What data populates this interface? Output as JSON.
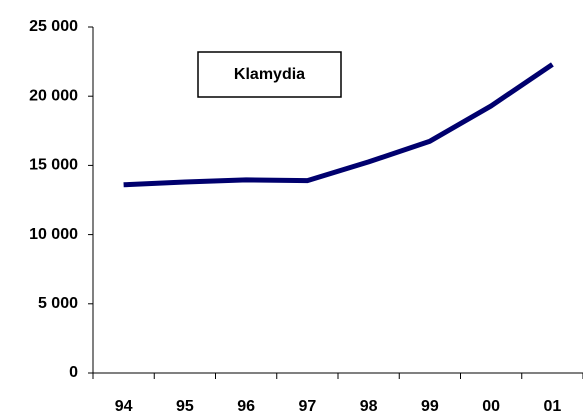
{
  "chart_data": {
    "type": "line",
    "categories": [
      "94",
      "95",
      "96",
      "97",
      "98",
      "99",
      "00",
      "01"
    ],
    "series": [
      {
        "name": "Klamydia",
        "color": "#00006e",
        "values": [
          13600,
          13800,
          13950,
          13900,
          15250,
          16750,
          19300,
          22300
        ]
      }
    ],
    "ylim": [
      0,
      25000
    ],
    "yticks": [
      0,
      {
        "value": 5000,
        "label": "5 000"
      },
      {
        "value": 10000,
        "label": "10 000"
      },
      {
        "value": 15000,
        "label": "15 000"
      },
      {
        "value": 20000,
        "label": "20 000"
      },
      {
        "value": 25000,
        "label": "25 000"
      }
    ],
    "grid": false
  }
}
